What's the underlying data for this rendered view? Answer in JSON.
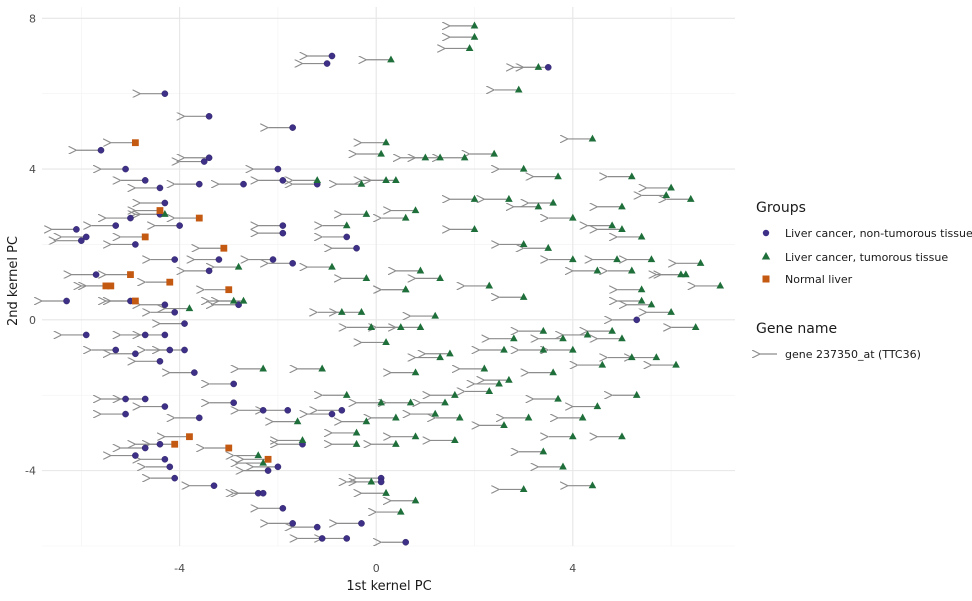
{
  "chart_data": {
    "type": "scatter",
    "xlabel": "1st kernel PC",
    "ylabel": "2nd kernel PC",
    "xlim": [
      -6.8,
      7.3
    ],
    "ylim": [
      -6.0,
      8.3
    ],
    "x_ticks": [
      -4,
      0,
      4
    ],
    "y_ticks": [
      -4,
      0,
      4,
      8
    ],
    "grid": true,
    "legend_placement": "right",
    "legend": {
      "groups_title": "Groups",
      "gene_title": "Gene name",
      "gene_label": "gene 237350_at (TTC36)"
    },
    "colors": {
      "non_tumorous": "#3e2f87",
      "tumorous": "#1f6f3b",
      "normal": "#c45a12",
      "arrow": "#8c8c8c"
    },
    "arrow_dx": -0.5,
    "series": [
      {
        "name": "Liver cancer, non-tumorous tissue",
        "marker": "circle",
        "points": [
          [
            -0.9,
            7.0
          ],
          [
            -1.0,
            6.8
          ],
          [
            -4.3,
            6.0
          ],
          [
            -3.4,
            5.4
          ],
          [
            -1.7,
            5.1
          ],
          [
            -5.6,
            4.5
          ],
          [
            -3.4,
            4.3
          ],
          [
            -3.5,
            4.2
          ],
          [
            -5.1,
            4.0
          ],
          [
            -2.0,
            4.0
          ],
          [
            -4.7,
            3.7
          ],
          [
            -4.4,
            3.5
          ],
          [
            -1.9,
            3.7
          ],
          [
            -2.7,
            3.6
          ],
          [
            -3.6,
            3.6
          ],
          [
            -1.2,
            3.6
          ],
          [
            -4.3,
            3.1
          ],
          [
            -5.0,
            2.7
          ],
          [
            -4.4,
            2.8
          ],
          [
            -5.3,
            2.5
          ],
          [
            -4.0,
            2.5
          ],
          [
            -6.1,
            2.4
          ],
          [
            -5.9,
            2.2
          ],
          [
            -6.0,
            2.1
          ],
          [
            -4.9,
            2.0
          ],
          [
            -1.9,
            2.5
          ],
          [
            -1.9,
            2.3
          ],
          [
            -0.6,
            2.2
          ],
          [
            -0.4,
            1.9
          ],
          [
            -4.1,
            1.6
          ],
          [
            -3.2,
            1.6
          ],
          [
            -2.1,
            1.6
          ],
          [
            -1.7,
            1.5
          ],
          [
            -3.4,
            1.3
          ],
          [
            -5.7,
            1.2
          ],
          [
            -6.3,
            0.5
          ],
          [
            -5.0,
            0.5
          ],
          [
            -4.3,
            0.4
          ],
          [
            -2.8,
            0.4
          ],
          [
            -4.1,
            0.2
          ],
          [
            -3.9,
            -0.1
          ],
          [
            -4.3,
            -0.4
          ],
          [
            -5.9,
            -0.4
          ],
          [
            -4.7,
            -0.4
          ],
          [
            -3.9,
            -0.8
          ],
          [
            -5.3,
            -0.8
          ],
          [
            -4.2,
            -0.8
          ],
          [
            -4.9,
            -0.9
          ],
          [
            -4.4,
            -1.1
          ],
          [
            -3.7,
            -1.4
          ],
          [
            -2.9,
            -1.7
          ],
          [
            -5.1,
            -2.1
          ],
          [
            -4.7,
            -2.1
          ],
          [
            -2.9,
            -2.2
          ],
          [
            -4.3,
            -2.3
          ],
          [
            -5.1,
            -2.5
          ],
          [
            -3.6,
            -2.6
          ],
          [
            -0.9,
            -2.5
          ],
          [
            -2.3,
            -2.4
          ],
          [
            -0.7,
            -2.4
          ],
          [
            -1.8,
            -2.4
          ],
          [
            -4.4,
            -3.3
          ],
          [
            -4.7,
            -3.4
          ],
          [
            -1.5,
            -3.3
          ],
          [
            -4.9,
            -3.6
          ],
          [
            -4.3,
            -3.7
          ],
          [
            -4.2,
            -3.9
          ],
          [
            -2.0,
            -3.9
          ],
          [
            -3.3,
            -4.4
          ],
          [
            -4.1,
            -4.2
          ],
          [
            -2.4,
            -4.6
          ],
          [
            -2.2,
            -4.0
          ],
          [
            -2.3,
            -4.6
          ],
          [
            -1.9,
            -5.0
          ],
          [
            -1.7,
            -5.4
          ],
          [
            -1.2,
            -5.5
          ],
          [
            -1.1,
            -5.8
          ],
          [
            -0.6,
            -5.8
          ],
          [
            -0.3,
            -5.4
          ],
          [
            0.6,
            -5.9
          ],
          [
            0.1,
            -4.2
          ],
          [
            0.1,
            -4.3
          ],
          [
            3.5,
            6.7
          ],
          [
            5.3,
            0.0
          ]
        ]
      },
      {
        "name": "Liver cancer, tumorous tissue",
        "marker": "triangle",
        "points": [
          [
            2.0,
            7.8
          ],
          [
            2.0,
            7.5
          ],
          [
            1.9,
            7.2
          ],
          [
            0.3,
            6.9
          ],
          [
            3.3,
            6.7
          ],
          [
            2.9,
            6.1
          ],
          [
            4.4,
            4.8
          ],
          [
            0.2,
            4.7
          ],
          [
            2.4,
            4.4
          ],
          [
            1.8,
            4.3
          ],
          [
            1.3,
            4.3
          ],
          [
            1.0,
            4.3
          ],
          [
            0.1,
            4.4
          ],
          [
            3.0,
            4.0
          ],
          [
            3.7,
            3.8
          ],
          [
            5.2,
            3.8
          ],
          [
            2.0,
            3.2
          ],
          [
            -1.2,
            3.7
          ],
          [
            -0.3,
            3.6
          ],
          [
            0.4,
            3.7
          ],
          [
            0.2,
            3.7
          ],
          [
            2.7,
            3.2
          ],
          [
            3.6,
            3.1
          ],
          [
            3.3,
            3.0
          ],
          [
            6.0,
            3.5
          ],
          [
            5.9,
            3.3
          ],
          [
            6.4,
            3.2
          ],
          [
            5.0,
            3.0
          ],
          [
            0.8,
            2.9
          ],
          [
            0.6,
            2.7
          ],
          [
            -0.2,
            2.8
          ],
          [
            -0.6,
            2.5
          ],
          [
            2.0,
            2.4
          ],
          [
            4.0,
            2.7
          ],
          [
            4.8,
            2.5
          ],
          [
            5.0,
            2.4
          ],
          [
            5.4,
            2.2
          ],
          [
            -4.3,
            2.8
          ],
          [
            3.0,
            2.0
          ],
          [
            3.5,
            1.9
          ],
          [
            4.0,
            1.6
          ],
          [
            4.9,
            1.6
          ],
          [
            5.6,
            1.6
          ],
          [
            6.6,
            1.5
          ],
          [
            5.2,
            1.3
          ],
          [
            4.5,
            1.3
          ],
          [
            6.2,
            1.2
          ],
          [
            0.9,
            1.3
          ],
          [
            1.3,
            1.1
          ],
          [
            2.3,
            0.9
          ],
          [
            3.0,
            0.6
          ],
          [
            0.6,
            0.8
          ],
          [
            -0.2,
            1.1
          ],
          [
            -0.9,
            1.4
          ],
          [
            -2.8,
            1.4
          ],
          [
            -2.9,
            0.5
          ],
          [
            -2.7,
            0.5
          ],
          [
            0.6,
            0.8
          ],
          [
            6.3,
            1.2
          ],
          [
            7.0,
            0.9
          ],
          [
            5.4,
            0.8
          ],
          [
            5.4,
            0.5
          ],
          [
            5.6,
            0.4
          ],
          [
            -3.8,
            0.3
          ],
          [
            -0.7,
            0.2
          ],
          [
            -0.3,
            0.2
          ],
          [
            0.5,
            -0.2
          ],
          [
            0.9,
            -0.2
          ],
          [
            1.2,
            0.1
          ],
          [
            -0.1,
            -0.2
          ],
          [
            0.2,
            -0.6
          ],
          [
            4.8,
            -0.3
          ],
          [
            4.3,
            -0.4
          ],
          [
            5.0,
            -0.5
          ],
          [
            6.0,
            0.2
          ],
          [
            6.5,
            -0.2
          ],
          [
            3.4,
            -0.8
          ],
          [
            2.8,
            -0.5
          ],
          [
            2.6,
            -0.8
          ],
          [
            3.4,
            -0.3
          ],
          [
            3.8,
            -0.5
          ],
          [
            4.0,
            -0.8
          ],
          [
            -2.3,
            -1.3
          ],
          [
            -1.1,
            -1.3
          ],
          [
            1.5,
            -0.9
          ],
          [
            1.3,
            -1.0
          ],
          [
            0.8,
            -1.4
          ],
          [
            2.2,
            -1.3
          ],
          [
            2.5,
            -1.7
          ],
          [
            4.6,
            -1.2
          ],
          [
            5.2,
            -1.0
          ],
          [
            5.7,
            -1.0
          ],
          [
            6.1,
            -1.2
          ],
          [
            3.6,
            -1.4
          ],
          [
            2.3,
            -1.9
          ],
          [
            -0.6,
            -2.0
          ],
          [
            0.1,
            -2.2
          ],
          [
            0.7,
            -2.2
          ],
          [
            1.4,
            -2.2
          ],
          [
            1.6,
            -2.0
          ],
          [
            3.7,
            -2.1
          ],
          [
            5.3,
            -2.0
          ],
          [
            4.5,
            -2.3
          ],
          [
            4.2,
            -2.6
          ],
          [
            1.2,
            -2.5
          ],
          [
            1.7,
            -2.6
          ],
          [
            0.4,
            -2.6
          ],
          [
            -0.2,
            -2.7
          ],
          [
            -1.6,
            -2.7
          ],
          [
            -0.4,
            -3.0
          ],
          [
            2.6,
            -2.8
          ],
          [
            3.1,
            -2.6
          ],
          [
            5.0,
            -3.1
          ],
          [
            4.0,
            -3.1
          ],
          [
            -1.5,
            -3.2
          ],
          [
            -0.4,
            -3.3
          ],
          [
            0.8,
            -3.1
          ],
          [
            0.4,
            -3.3
          ],
          [
            1.6,
            -3.2
          ],
          [
            3.4,
            -3.5
          ],
          [
            3.8,
            -3.9
          ],
          [
            -0.1,
            -4.3
          ],
          [
            0.2,
            -4.6
          ],
          [
            3.0,
            -4.5
          ],
          [
            0.8,
            -4.8
          ],
          [
            4.4,
            -4.4
          ],
          [
            0.5,
            -5.1
          ],
          [
            -2.4,
            -3.6
          ],
          [
            -2.3,
            -3.8
          ],
          [
            2.7,
            -1.6
          ]
        ]
      },
      {
        "name": "Normal liver",
        "marker": "square",
        "points": [
          [
            -4.9,
            4.7
          ],
          [
            -4.4,
            2.9
          ],
          [
            -3.6,
            2.7
          ],
          [
            -4.7,
            2.2
          ],
          [
            -3.1,
            1.9
          ],
          [
            -5.0,
            1.2
          ],
          [
            -5.5,
            0.9
          ],
          [
            -4.2,
            1.0
          ],
          [
            -3.0,
            0.8
          ],
          [
            -4.9,
            0.5
          ],
          [
            -4.1,
            -3.3
          ],
          [
            -3.8,
            -3.1
          ],
          [
            -3.0,
            -3.4
          ],
          [
            -2.2,
            -3.7
          ],
          [
            -5.4,
            0.9
          ]
        ]
      }
    ]
  }
}
